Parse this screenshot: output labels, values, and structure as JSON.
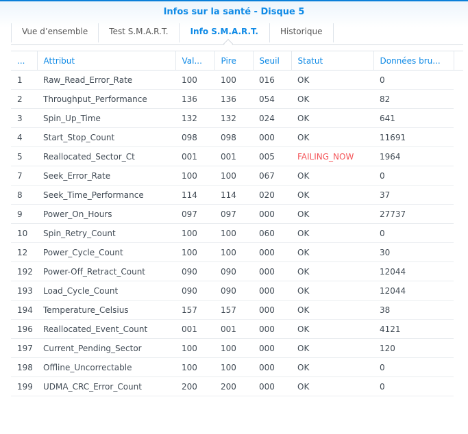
{
  "window": {
    "title": "Infos sur la santé - Disque 5"
  },
  "tabs": [
    {
      "label": "Vue d’ensemble",
      "active": false
    },
    {
      "label": "Test S.M.A.R.T.",
      "active": false
    },
    {
      "label": "Info S.M.A.R.T.",
      "active": true
    },
    {
      "label": "Historique",
      "active": false
    }
  ],
  "colors": {
    "accent": "#0f8ae6",
    "failing": "#f4565a"
  },
  "table": {
    "columns": [
      "...",
      "Attribut",
      "Val...",
      "Pire",
      "Seuil",
      "Statut",
      "Données bru..."
    ],
    "rows": [
      [
        "1",
        "Raw_Read_Error_Rate",
        "100",
        "100",
        "016",
        "OK",
        "0"
      ],
      [
        "2",
        "Throughput_Performance",
        "136",
        "136",
        "054",
        "OK",
        "82"
      ],
      [
        "3",
        "Spin_Up_Time",
        "132",
        "132",
        "024",
        "OK",
        "641"
      ],
      [
        "4",
        "Start_Stop_Count",
        "098",
        "098",
        "000",
        "OK",
        "11691"
      ],
      [
        "5",
        "Reallocated_Sector_Ct",
        "001",
        "001",
        "005",
        "FAILING_NOW",
        "1964"
      ],
      [
        "7",
        "Seek_Error_Rate",
        "100",
        "100",
        "067",
        "OK",
        "0"
      ],
      [
        "8",
        "Seek_Time_Performance",
        "114",
        "114",
        "020",
        "OK",
        "37"
      ],
      [
        "9",
        "Power_On_Hours",
        "097",
        "097",
        "000",
        "OK",
        "27737"
      ],
      [
        "10",
        "Spin_Retry_Count",
        "100",
        "100",
        "060",
        "OK",
        "0"
      ],
      [
        "12",
        "Power_Cycle_Count",
        "100",
        "100",
        "000",
        "OK",
        "30"
      ],
      [
        "192",
        "Power-Off_Retract_Count",
        "090",
        "090",
        "000",
        "OK",
        "12044"
      ],
      [
        "193",
        "Load_Cycle_Count",
        "090",
        "090",
        "000",
        "OK",
        "12044"
      ],
      [
        "194",
        "Temperature_Celsius",
        "157",
        "157",
        "000",
        "OK",
        "38"
      ],
      [
        "196",
        "Reallocated_Event_Count",
        "001",
        "001",
        "000",
        "OK",
        "4121"
      ],
      [
        "197",
        "Current_Pending_Sector",
        "100",
        "100",
        "000",
        "OK",
        "120"
      ],
      [
        "198",
        "Offline_Uncorrectable",
        "100",
        "100",
        "000",
        "OK",
        "0"
      ],
      [
        "199",
        "UDMA_CRC_Error_Count",
        "200",
        "200",
        "000",
        "OK",
        "0"
      ]
    ]
  }
}
